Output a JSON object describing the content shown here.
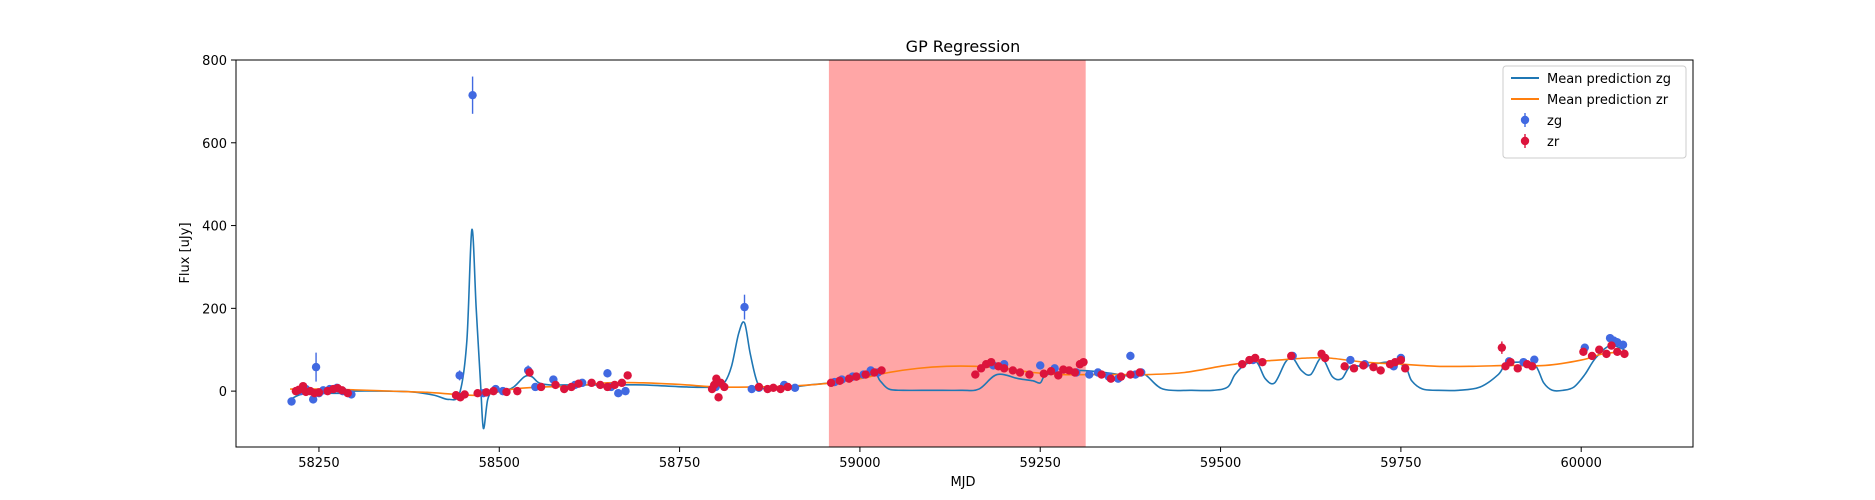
{
  "chart_data": {
    "type": "scatter",
    "title": "GP Regression",
    "xlabel": "MJD",
    "ylabel": "Flux [uJy]",
    "xlim": [
      58135,
      60155
    ],
    "ylim": [
      -135,
      800
    ],
    "xticks": [
      58250,
      58500,
      58750,
      59000,
      59250,
      59500,
      59750,
      60000
    ],
    "xtick_labels": [
      "58250",
      "58500",
      "58750",
      "59000",
      "59250",
      "59500",
      "59750",
      "60000"
    ],
    "yticks": [
      0,
      200,
      400,
      600,
      800
    ],
    "ytick_labels": [
      "0",
      "200",
      "400",
      "600",
      "800"
    ],
    "grid": false,
    "legend_position": "upper right",
    "shaded_region": {
      "x": [
        58957,
        59313
      ],
      "color": "#ff6b6b"
    },
    "series": [
      {
        "name": "Mean prediction zg",
        "kind": "line",
        "color": "#1f77b4",
        "x": [
          58210,
          58230,
          58260,
          58290,
          58300,
          58340,
          58380,
          58410,
          58430,
          58445,
          58455,
          58462,
          58468,
          58474,
          58478,
          58484,
          58492,
          58505,
          58520,
          58535,
          58545,
          58555,
          58570,
          58590,
          58620,
          58660,
          58700,
          58760,
          58800,
          58812,
          58822,
          58832,
          58840,
          58848,
          58858,
          58870,
          58900,
          58930,
          58960,
          58990,
          59020,
          59028,
          59040,
          59060,
          59100,
          59140,
          59165,
          59190,
          59220,
          59240,
          59250,
          59260,
          59300,
          59340,
          59380,
          59395,
          59420,
          59460,
          59490,
          59510,
          59520,
          59535,
          59550,
          59562,
          59575,
          59590,
          59600,
          59612,
          59625,
          59640,
          59655,
          59668,
          59680,
          59700,
          59730,
          59755,
          59765,
          59780,
          59800,
          59830,
          59860,
          59885,
          59895,
          59910,
          59935,
          59948,
          59960,
          59975,
          59990,
          60005,
          60020,
          60040,
          60060
        ],
        "y": [
          -20,
          -5,
          -5,
          -5,
          0,
          0,
          -2,
          -10,
          -20,
          -5,
          120,
          390,
          200,
          20,
          -90,
          -20,
          0,
          0,
          10,
          35,
          35,
          20,
          15,
          15,
          15,
          15,
          15,
          10,
          10,
          20,
          60,
          140,
          165,
          90,
          20,
          5,
          8,
          15,
          20,
          30,
          40,
          25,
          5,
          2,
          2,
          2,
          5,
          40,
          30,
          25,
          20,
          40,
          50,
          45,
          35,
          40,
          5,
          2,
          2,
          10,
          40,
          65,
          70,
          30,
          20,
          70,
          80,
          50,
          40,
          80,
          35,
          30,
          60,
          60,
          70,
          60,
          25,
          5,
          2,
          2,
          10,
          40,
          65,
          70,
          65,
          20,
          2,
          2,
          10,
          40,
          80,
          110,
          100
        ]
      },
      {
        "name": "Mean prediction zr",
        "kind": "line",
        "color": "#ff7f0e",
        "x": [
          58210,
          58260,
          58300,
          58350,
          58400,
          58440,
          58470,
          58490,
          58520,
          58560,
          58600,
          58650,
          58700,
          58760,
          58800,
          58850,
          58900,
          58950,
          59000,
          59040,
          59080,
          59120,
          59160,
          59200,
          59240,
          59280,
          59320,
          59360,
          59400,
          59450,
          59500,
          59540,
          59580,
          59620,
          59650,
          59700,
          59750,
          59800,
          59850,
          59900,
          59950,
          60000,
          60030,
          60060
        ],
        "y": [
          5,
          5,
          3,
          0,
          -3,
          -8,
          -10,
          -5,
          5,
          10,
          12,
          20,
          20,
          15,
          10,
          10,
          12,
          18,
          30,
          45,
          55,
          60,
          60,
          55,
          45,
          40,
          40,
          40,
          40,
          45,
          60,
          70,
          75,
          80,
          80,
          70,
          65,
          60,
          60,
          62,
          62,
          75,
          90,
          95
        ]
      },
      {
        "name": "zg",
        "kind": "errorbar",
        "color": "#4169e1",
        "x": [
          58212,
          58225,
          58232,
          58242,
          58246,
          58250,
          58256,
          58265,
          58275,
          58283,
          58295,
          58445,
          58463,
          58478,
          58495,
          58505,
          58540,
          58550,
          58575,
          58605,
          58615,
          58650,
          58655,
          58665,
          58675,
          58800,
          58840,
          58850,
          58860,
          58895,
          58910,
          58965,
          58975,
          58990,
          59005,
          59015,
          59025,
          59185,
          59200,
          59250,
          59270,
          59300,
          59318,
          59330,
          59345,
          59358,
          59375,
          59382,
          59390,
          59545,
          59600,
          59680,
          59700,
          59740,
          59750,
          59900,
          59920,
          59935,
          60005,
          60040,
          60045,
          60050,
          60058
        ],
        "y": [
          -25,
          0,
          5,
          -20,
          58,
          -5,
          2,
          5,
          8,
          0,
          -8,
          38,
          715,
          -5,
          5,
          0,
          50,
          10,
          28,
          15,
          20,
          43,
          10,
          -5,
          0,
          10,
          203,
          5,
          8,
          15,
          8,
          22,
          28,
          35,
          40,
          50,
          45,
          62,
          65,
          62,
          55,
          45,
          40,
          45,
          35,
          30,
          85,
          40,
          45,
          75,
          85,
          75,
          65,
          60,
          80,
          72,
          70,
          76,
          105,
          128,
          122,
          118,
          112
        ],
        "yerr": [
          10,
          8,
          8,
          8,
          35,
          8,
          8,
          8,
          8,
          8,
          8,
          12,
          45,
          8,
          8,
          8,
          12,
          8,
          8,
          8,
          8,
          10,
          8,
          8,
          8,
          8,
          30,
          8,
          8,
          8,
          8,
          8,
          8,
          8,
          8,
          8,
          8,
          8,
          8,
          8,
          8,
          8,
          8,
          8,
          8,
          8,
          10,
          8,
          8,
          8,
          8,
          8,
          8,
          8,
          8,
          8,
          8,
          8,
          10,
          10,
          10,
          10,
          10
        ]
      },
      {
        "name": "zr",
        "kind": "errorbar",
        "color": "#dc143c",
        "x": [
          58218,
          58222,
          58228,
          58232,
          58238,
          58244,
          58250,
          58262,
          58270,
          58276,
          58282,
          58290,
          58440,
          58446,
          58452,
          58470,
          58482,
          58492,
          58510,
          58525,
          58542,
          58558,
          58578,
          58590,
          58600,
          58610,
          58628,
          58640,
          58650,
          58660,
          58670,
          58678,
          58795,
          58798,
          58801,
          58804,
          58807,
          58812,
          58860,
          58872,
          58880,
          58890,
          58900,
          58960,
          58972,
          58985,
          58995,
          59008,
          59020,
          59030,
          59160,
          59168,
          59175,
          59182,
          59192,
          59200,
          59212,
          59222,
          59235,
          59255,
          59265,
          59275,
          59282,
          59290,
          59298,
          59305,
          59310,
          59335,
          59348,
          59362,
          59375,
          59388,
          59530,
          59540,
          59548,
          59558,
          59598,
          59640,
          59645,
          59672,
          59685,
          59698,
          59712,
          59722,
          59735,
          59742,
          59750,
          59756,
          59890,
          59895,
          59902,
          59912,
          59925,
          59932,
          60003,
          60015,
          60025,
          60035,
          60042,
          60050,
          60060
        ],
        "y": [
          0,
          3,
          12,
          -2,
          0,
          -5,
          -3,
          0,
          5,
          7,
          2,
          -5,
          -10,
          -15,
          -8,
          -5,
          -3,
          0,
          -2,
          0,
          45,
          10,
          15,
          5,
          10,
          18,
          20,
          15,
          10,
          15,
          20,
          38,
          5,
          15,
          30,
          -15,
          20,
          10,
          10,
          5,
          8,
          5,
          10,
          20,
          25,
          30,
          35,
          40,
          45,
          50,
          40,
          55,
          65,
          70,
          60,
          55,
          50,
          45,
          40,
          42,
          48,
          38,
          52,
          50,
          45,
          65,
          70,
          40,
          30,
          35,
          40,
          45,
          65,
          75,
          80,
          70,
          85,
          90,
          80,
          60,
          55,
          62,
          58,
          50,
          65,
          70,
          75,
          55,
          105,
          60,
          70,
          55,
          65,
          60,
          95,
          85,
          100,
          90,
          110,
          95,
          90
        ],
        "yerr": [
          6,
          6,
          6,
          6,
          6,
          6,
          6,
          6,
          6,
          6,
          6,
          6,
          6,
          6,
          6,
          6,
          6,
          6,
          6,
          6,
          8,
          6,
          6,
          6,
          6,
          6,
          6,
          6,
          6,
          6,
          6,
          6,
          6,
          6,
          6,
          6,
          6,
          6,
          6,
          6,
          6,
          6,
          6,
          6,
          6,
          6,
          6,
          6,
          6,
          6,
          6,
          6,
          6,
          6,
          6,
          6,
          6,
          6,
          6,
          6,
          6,
          6,
          6,
          6,
          6,
          6,
          6,
          6,
          6,
          6,
          6,
          6,
          6,
          6,
          6,
          6,
          6,
          6,
          6,
          6,
          6,
          6,
          6,
          6,
          6,
          6,
          6,
          6,
          15,
          6,
          6,
          6,
          6,
          6,
          6,
          6,
          6,
          6,
          6,
          6,
          6
        ]
      }
    ]
  }
}
